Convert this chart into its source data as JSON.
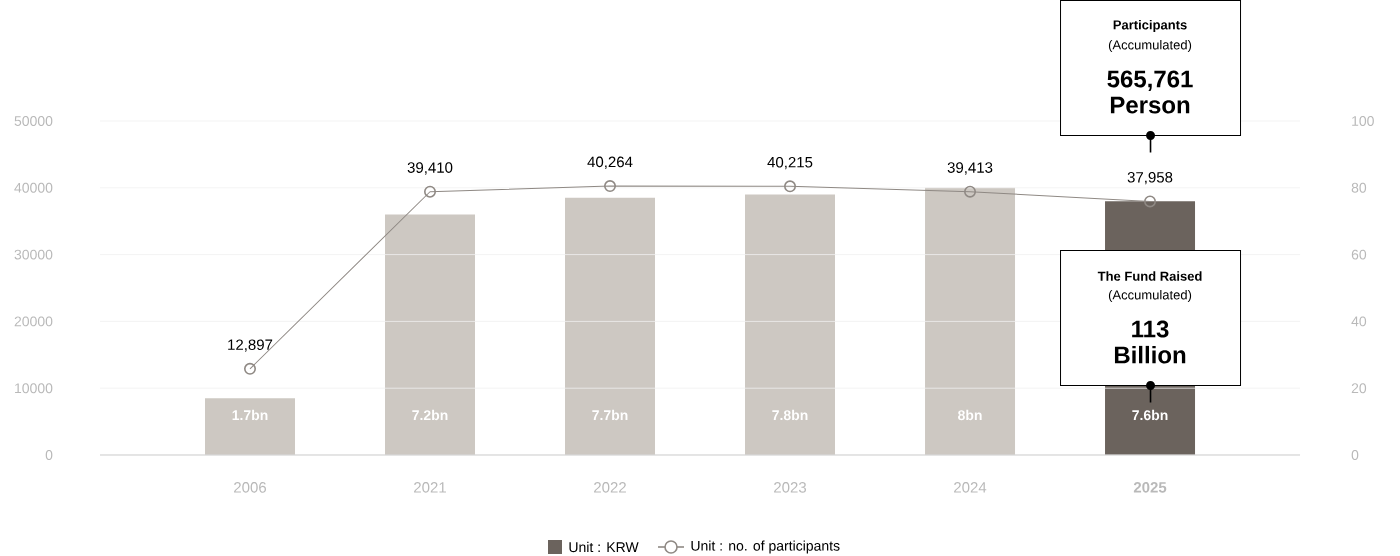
{
  "chart_data": {
    "type": "bar",
    "categories": [
      "2006",
      "2021",
      "2022",
      "2023",
      "2024",
      "**2025**"
    ],
    "series": [
      {
        "name": "Unit : KRW",
        "axis": "y2",
        "color": "#6b635d",
        "colors": [
          "#cdc8c2",
          "#cdc8c2",
          "#cdc8c2",
          "#cdc8c2",
          "#cdc8c2",
          "#6b635d"
        ],
        "values": [
          17,
          72,
          77,
          78,
          80,
          76
        ]
      },
      {
        "name": "Unit : no. of participants",
        "type": "line",
        "color": "#8f8984",
        "marker": "circle",
        "values": [
          12897,
          39410,
          40264,
          40215,
          39413,
          37958
        ],
        "value_labels": [
          "12,897",
          "39,410",
          "40,264",
          "40,215",
          "39,413",
          "37,958"
        ]
      }
    ],
    "ylim": [
      0,
      50000
    ],
    "yticks": [
      0,
      10000,
      20000,
      30000,
      40000,
      50000
    ],
    "y2lim": [
      0,
      100
    ],
    "y2ticks": [
      0,
      20,
      40,
      60,
      80,
      100
    ],
    "grid": "y",
    "legend": "bottom",
    "annotations": [
      "Participants",
      "(Accumulated)",
      "565,761 Person",
      "The Fund Raised",
      "(Accumulated)",
      "113 Billion",
      "1.7bn",
      "7.2bn",
      "7.7bn",
      "7.8bn",
      "8bn",
      "7.6bn"
    ]
  }
}
